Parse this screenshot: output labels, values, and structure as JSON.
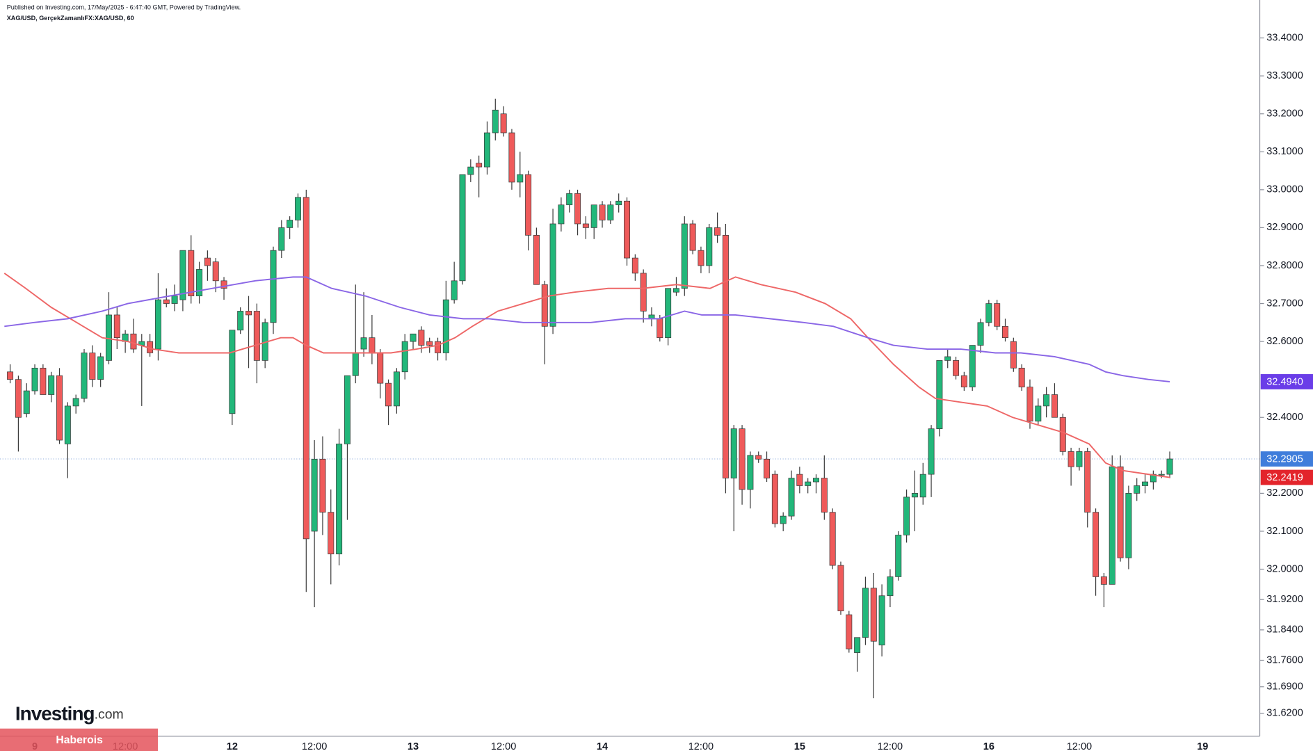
{
  "chart_data": {
    "type": "candlestick",
    "subtitle": "Published on Investing.com, 17/May/2025 - 6:47:40 GMT, Powered by TradingView.",
    "title": "XAG/USD, GerçekZamanlıFX:XAG/USD, 60",
    "logo_brand": "Investing",
    "logo_suffix": ".com",
    "watermark": "Haberois",
    "categories": [
      null,
      null,
      null,
      "9",
      null,
      null,
      null,
      null,
      null,
      null,
      null,
      null,
      null,
      null,
      "12:00",
      null,
      null,
      null,
      null,
      null,
      null,
      null,
      null,
      null,
      null,
      null,
      null,
      "12",
      null,
      null,
      null,
      null,
      null,
      null,
      null,
      null,
      null,
      "12:00",
      null,
      null,
      null,
      null,
      null,
      null,
      null,
      null,
      null,
      null,
      null,
      "13",
      null,
      null,
      null,
      null,
      null,
      null,
      null,
      null,
      null,
      null,
      "12:00",
      null,
      null,
      null,
      null,
      null,
      null,
      null,
      null,
      null,
      null,
      null,
      "14",
      null,
      null,
      null,
      null,
      null,
      null,
      null,
      null,
      null,
      null,
      null,
      "12:00",
      null,
      null,
      null,
      null,
      null,
      null,
      null,
      null,
      null,
      null,
      null,
      "15",
      null,
      null,
      null,
      null,
      null,
      null,
      null,
      null,
      null,
      null,
      "12:00",
      null,
      null,
      null,
      null,
      null,
      null,
      null,
      null,
      null,
      null,
      null,
      "16",
      null,
      null,
      null,
      null,
      null,
      null,
      null,
      null,
      null,
      null,
      "12:00",
      null,
      null,
      null,
      null,
      null,
      null,
      null,
      null,
      null,
      null,
      null,
      null,
      null,
      null,
      "19"
    ],
    "open": [
      32.52,
      32.5,
      32.41,
      32.47,
      32.53,
      32.46,
      32.51,
      32.33,
      32.43,
      32.45,
      32.57,
      32.5,
      32.55,
      32.67,
      32.6,
      32.62,
      32.59,
      32.6,
      32.58,
      32.71,
      32.7,
      32.71,
      32.84,
      32.72,
      32.82,
      32.81,
      32.76,
      32.41,
      32.63,
      32.68,
      32.68,
      32.55,
      32.65,
      32.84,
      32.9,
      32.92,
      32.98,
      32.1,
      32.29,
      32.15,
      32.04,
      32.33,
      32.51,
      32.58,
      32.61,
      32.57,
      32.49,
      32.43,
      32.52,
      32.6,
      32.63,
      32.6,
      32.6,
      32.57,
      32.71,
      32.76,
      33.04,
      33.07,
      33.06,
      33.15,
      33.2,
      33.15,
      33.02,
      33.04,
      32.88,
      32.75,
      32.64,
      32.91,
      32.96,
      32.99,
      32.91,
      32.9,
      32.96,
      32.92,
      32.96,
      32.97,
      32.82,
      32.78,
      32.66,
      32.66,
      32.61,
      32.73,
      32.74,
      32.91,
      32.84,
      32.8,
      32.9,
      32.88,
      32.24,
      32.37,
      32.21,
      32.3,
      32.29,
      32.25,
      32.12,
      32.14,
      32.25,
      32.22,
      32.23,
      32.24,
      32.15,
      32.01,
      31.88,
      31.78,
      31.82,
      31.95,
      31.8,
      31.93,
      31.98,
      32.09,
      32.19,
      32.19,
      32.25,
      32.37,
      32.55,
      32.55,
      32.51,
      32.48,
      32.59,
      32.65,
      32.7,
      32.64,
      32.6,
      32.53,
      32.48,
      32.39,
      32.43,
      32.46,
      32.4,
      32.31,
      32.27,
      32.31,
      32.15,
      31.98,
      31.96,
      32.27,
      32.03,
      32.2,
      32.22,
      32.23,
      32.25,
      32.25,
      null,
      null,
      null,
      null
    ],
    "high": [
      32.54,
      32.51,
      32.49,
      32.54,
      32.54,
      32.52,
      32.53,
      32.44,
      32.46,
      32.58,
      32.59,
      32.57,
      32.73,
      32.69,
      32.63,
      32.66,
      32.62,
      32.62,
      32.78,
      32.74,
      32.75,
      32.84,
      32.88,
      32.81,
      32.84,
      32.82,
      32.77,
      32.63,
      32.69,
      32.72,
      32.7,
      32.66,
      32.85,
      32.92,
      32.93,
      32.99,
      33.0,
      32.34,
      32.35,
      32.21,
      32.37,
      32.51,
      32.75,
      32.73,
      32.67,
      32.58,
      32.5,
      32.53,
      32.62,
      32.62,
      32.64,
      32.61,
      32.61,
      32.76,
      32.81,
      33.04,
      33.08,
      33.09,
      33.18,
      33.24,
      33.22,
      33.16,
      33.1,
      33.05,
      32.9,
      32.76,
      32.95,
      32.98,
      33.0,
      33.0,
      32.93,
      32.96,
      32.97,
      32.97,
      32.99,
      32.98,
      32.83,
      32.79,
      32.69,
      32.67,
      32.74,
      32.77,
      32.93,
      32.92,
      32.85,
      32.91,
      32.94,
      32.91,
      32.38,
      32.38,
      32.31,
      32.31,
      32.31,
      32.26,
      32.15,
      32.26,
      32.27,
      32.24,
      32.25,
      32.3,
      32.16,
      32.02,
      31.89,
      31.82,
      31.98,
      31.99,
      31.96,
      32.0,
      32.1,
      32.21,
      32.26,
      32.28,
      32.38,
      32.55,
      32.58,
      32.56,
      32.52,
      32.59,
      32.66,
      32.71,
      32.71,
      32.66,
      32.61,
      32.54,
      32.5,
      32.45,
      32.48,
      32.49,
      32.41,
      32.32,
      32.32,
      32.32,
      32.16,
      31.99,
      32.3,
      32.3,
      32.22,
      32.24,
      32.25,
      32.26,
      32.26,
      32.31,
      null,
      null,
      null,
      null
    ],
    "low": [
      32.49,
      32.31,
      32.4,
      32.46,
      32.46,
      32.44,
      32.33,
      32.24,
      32.41,
      32.44,
      32.48,
      32.48,
      32.54,
      32.58,
      32.57,
      32.57,
      32.43,
      32.56,
      32.55,
      32.69,
      32.68,
      32.68,
      32.7,
      32.7,
      32.76,
      32.73,
      32.71,
      32.38,
      32.62,
      32.53,
      32.49,
      32.53,
      32.62,
      32.82,
      32.87,
      32.9,
      31.94,
      31.9,
      32.09,
      31.96,
      32.01,
      32.13,
      32.49,
      32.56,
      32.54,
      32.45,
      32.38,
      32.41,
      32.5,
      32.58,
      32.57,
      32.57,
      32.55,
      32.55,
      32.7,
      32.75,
      33.02,
      32.98,
      33.04,
      33.13,
      33.14,
      33.0,
      32.98,
      32.84,
      32.75,
      32.54,
      32.62,
      32.89,
      32.94,
      32.88,
      32.87,
      32.87,
      32.9,
      32.91,
      32.94,
      32.8,
      32.76,
      32.65,
      32.64,
      32.6,
      32.59,
      32.72,
      32.72,
      32.83,
      32.78,
      32.78,
      32.86,
      32.2,
      32.1,
      32.17,
      32.16,
      32.28,
      32.23,
      32.11,
      32.1,
      32.13,
      32.2,
      32.2,
      32.2,
      32.13,
      32.0,
      31.88,
      31.78,
      31.73,
      31.8,
      31.66,
      31.77,
      31.9,
      31.97,
      32.07,
      32.1,
      32.17,
      32.19,
      32.35,
      32.53,
      32.5,
      32.47,
      32.47,
      32.57,
      32.64,
      32.63,
      32.6,
      32.52,
      32.47,
      32.37,
      32.38,
      32.4,
      32.4,
      32.3,
      32.22,
      32.26,
      32.11,
      31.93,
      31.9,
      31.96,
      32.02,
      32.0,
      32.18,
      32.2,
      32.21,
      32.24,
      32.24,
      null,
      null,
      null,
      null
    ],
    "close": [
      32.5,
      32.4,
      32.47,
      32.53,
      32.46,
      32.51,
      32.34,
      32.43,
      32.45,
      32.57,
      32.5,
      32.56,
      32.67,
      32.61,
      32.62,
      32.58,
      32.6,
      32.57,
      32.71,
      32.7,
      32.72,
      32.84,
      32.72,
      32.79,
      32.8,
      32.76,
      32.74,
      32.63,
      32.68,
      32.67,
      32.55,
      32.65,
      32.84,
      32.9,
      32.92,
      32.98,
      32.08,
      32.29,
      32.15,
      32.04,
      32.33,
      32.51,
      32.57,
      32.61,
      32.57,
      32.49,
      32.43,
      32.52,
      32.6,
      32.62,
      32.59,
      32.59,
      32.57,
      32.71,
      32.76,
      33.04,
      33.06,
      33.06,
      33.15,
      33.21,
      33.15,
      33.02,
      33.04,
      32.88,
      32.75,
      32.64,
      32.91,
      32.96,
      32.99,
      32.91,
      32.9,
      32.96,
      32.92,
      32.96,
      32.97,
      32.82,
      32.78,
      32.68,
      32.67,
      32.61,
      32.74,
      32.74,
      32.91,
      32.84,
      32.8,
      32.9,
      32.88,
      32.24,
      32.37,
      32.21,
      32.3,
      32.29,
      32.24,
      32.12,
      32.14,
      32.24,
      32.22,
      32.23,
      32.24,
      32.15,
      32.01,
      31.89,
      31.79,
      31.82,
      31.95,
      31.81,
      31.93,
      31.98,
      32.09,
      32.19,
      32.2,
      32.25,
      32.37,
      32.55,
      32.56,
      32.51,
      32.48,
      32.59,
      32.65,
      32.7,
      32.64,
      32.61,
      32.53,
      32.48,
      32.39,
      32.43,
      32.46,
      32.4,
      32.31,
      32.27,
      32.31,
      32.15,
      31.98,
      31.96,
      32.27,
      32.03,
      32.2,
      32.22,
      32.23,
      32.25,
      32.25,
      32.2905,
      null,
      null,
      null,
      null
    ],
    "up_color": "#22b77a",
    "down_color": "#ef5a5a",
    "wick_color": "#3a3a3a",
    "lines": [
      {
        "color": "#ee6767",
        "x": [
          -0.7,
          1.9,
          5.0,
          8.1,
          11.2,
          14.3,
          17.4,
          20.5,
          23.6,
          26.7,
          29.8,
          32.9,
          34.4,
          36.0,
          38.1,
          42.2,
          46.3,
          49.4,
          52,
          54.1,
          56.2,
          59.3,
          62.4,
          65.5,
          68.6,
          72.7,
          76.9,
          81,
          85.1,
          88.2,
          91.3,
          95.5,
          99.1,
          102.2,
          104.3,
          107.4,
          110.5,
          112.5,
          115.6,
          118.8,
          121.9,
          125,
          128.1,
          131.2,
          133.2,
          135.3,
          138.4,
          141
        ],
        "values": [
          32.78,
          32.74,
          32.69,
          32.65,
          32.61,
          32.6,
          32.58,
          32.57,
          32.57,
          32.57,
          32.59,
          32.61,
          32.61,
          32.59,
          32.57,
          32.57,
          32.57,
          32.58,
          32.59,
          32.61,
          32.64,
          32.68,
          32.7,
          32.72,
          32.73,
          32.74,
          32.74,
          32.75,
          32.74,
          32.77,
          32.75,
          32.73,
          32.7,
          32.66,
          32.61,
          32.54,
          32.48,
          32.45,
          32.44,
          32.43,
          32.4,
          32.38,
          32.36,
          32.33,
          32.28,
          32.26,
          32.25,
          32.2419
        ]
      },
      {
        "color": "#8a66e6",
        "x": [
          -0.7,
          2.9,
          7.0,
          11.2,
          14.3,
          19.4,
          24.6,
          29.8,
          34.4,
          36.0,
          39.1,
          43.2,
          47.4,
          51,
          55.1,
          58.2,
          62.4,
          66.5,
          70.6,
          74.8,
          78.9,
          82,
          84.1,
          88.2,
          92.4,
          96.5,
          100.1,
          104.3,
          107.4,
          111.5,
          115.6,
          119.8,
          122.9,
          127,
          131.2,
          133.2,
          135.3,
          138.4,
          141
        ],
        "values": [
          32.64,
          32.65,
          32.66,
          32.68,
          32.7,
          32.72,
          32.74,
          32.76,
          32.77,
          32.77,
          32.74,
          32.72,
          32.69,
          32.67,
          32.66,
          32.66,
          32.65,
          32.65,
          32.65,
          32.66,
          32.66,
          32.68,
          32.67,
          32.67,
          32.66,
          32.65,
          32.64,
          32.61,
          32.59,
          32.58,
          32.58,
          32.57,
          32.57,
          32.56,
          32.54,
          32.52,
          32.51,
          32.5,
          32.494
        ]
      }
    ],
    "price_line_color": "#a8bfe4",
    "price_badges": [
      {
        "value": 32.494,
        "label": "32.4940",
        "color": "#6a3de8"
      },
      {
        "value": 32.2905,
        "label": "32.2905",
        "color": "#3f7ddb"
      },
      {
        "value": 32.2419,
        "label": "32.2419",
        "color": "#e3242b"
      }
    ],
    "ylim": [
      31.56,
      33.5
    ],
    "yticks": [
      {
        "value": 33.4,
        "label": "33.4000"
      },
      {
        "value": 33.3,
        "label": "33.3000"
      },
      {
        "value": 33.2,
        "label": "33.2000"
      },
      {
        "value": 33.1,
        "label": "33.1000"
      },
      {
        "value": 33.0,
        "label": "33.0000"
      },
      {
        "value": 32.9,
        "label": "32.9000"
      },
      {
        "value": 32.8,
        "label": "32.8000"
      },
      {
        "value": 32.7,
        "label": "32.7000"
      },
      {
        "value": 32.6,
        "label": "32.6000"
      },
      {
        "value": 32.4,
        "label": "32.4000"
      },
      {
        "value": 32.2,
        "label": "32.2000"
      },
      {
        "value": 32.1,
        "label": "32.1000"
      },
      {
        "value": 32.0,
        "label": "32.0000"
      },
      {
        "value": 31.92,
        "label": "31.9200"
      },
      {
        "value": 31.84,
        "label": "31.8400"
      },
      {
        "value": 31.76,
        "label": "31.7600"
      },
      {
        "value": 31.69,
        "label": "31.6900"
      },
      {
        "value": 31.62,
        "label": "31.6200"
      }
    ],
    "grid": false
  }
}
